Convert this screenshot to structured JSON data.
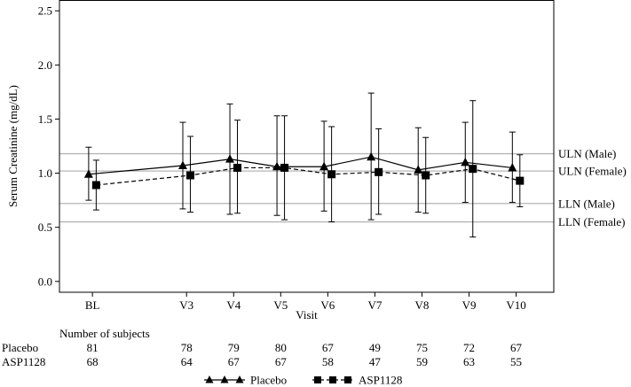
{
  "chart_data": {
    "type": "line",
    "xlabel": "Visit",
    "ylabel": "Serum Creatinine (mg/dL)",
    "ylim": [
      -0.1,
      2.6
    ],
    "yticks": [
      "0.0",
      "0.5",
      "1.0",
      "1.5",
      "2.0",
      "2.5"
    ],
    "ytick_values": [
      0.0,
      0.5,
      1.0,
      1.5,
      2.0,
      2.5
    ],
    "categories": [
      "BL",
      "V3",
      "V4",
      "V5",
      "V6",
      "V7",
      "V8",
      "V9",
      "V10"
    ],
    "category_positions": [
      1,
      3,
      4,
      5,
      6,
      7,
      8,
      9,
      10
    ],
    "reference_lines": [
      {
        "label": "ULN (Male)",
        "value": 1.18
      },
      {
        "label": "ULN (Female)",
        "value": 1.02
      },
      {
        "label": "LLN (Male)",
        "value": 0.72
      },
      {
        "label": "LLN (Female)",
        "value": 0.55
      }
    ],
    "series": [
      {
        "name": "Placebo",
        "marker": "triangle",
        "line_style": "solid",
        "offset": -0.08,
        "values": [
          0.99,
          1.07,
          1.13,
          1.06,
          1.06,
          1.15,
          1.03,
          1.1,
          1.05
        ],
        "upper": [
          1.24,
          1.47,
          1.64,
          1.53,
          1.48,
          1.74,
          1.42,
          1.47,
          1.38
        ],
        "lower": [
          0.75,
          0.67,
          0.62,
          0.61,
          0.65,
          0.57,
          0.64,
          0.73,
          0.73
        ]
      },
      {
        "name": "ASP1128",
        "marker": "square",
        "line_style": "dashed",
        "offset": 0.08,
        "values": [
          0.89,
          0.98,
          1.05,
          1.05,
          0.99,
          1.01,
          0.98,
          1.04,
          0.93
        ],
        "upper": [
          1.12,
          1.34,
          1.49,
          1.53,
          1.43,
          1.41,
          1.33,
          1.67,
          1.17
        ],
        "lower": [
          0.66,
          0.64,
          0.63,
          0.57,
          0.55,
          0.62,
          0.63,
          0.41,
          0.69
        ]
      }
    ]
  },
  "subjects": {
    "heading": "Number of subjects",
    "rows": [
      {
        "label": "Placebo",
        "counts": [
          "81",
          "78",
          "79",
          "80",
          "67",
          "49",
          "75",
          "72",
          "67"
        ]
      },
      {
        "label": "ASP1128",
        "counts": [
          "68",
          "64",
          "67",
          "67",
          "58",
          "47",
          "59",
          "63",
          "55"
        ]
      }
    ]
  },
  "legend": {
    "items": [
      {
        "label": "Placebo",
        "marker": "triangle",
        "line_style": "solid"
      },
      {
        "label": "ASP1128",
        "marker": "square",
        "line_style": "dashed"
      }
    ]
  }
}
